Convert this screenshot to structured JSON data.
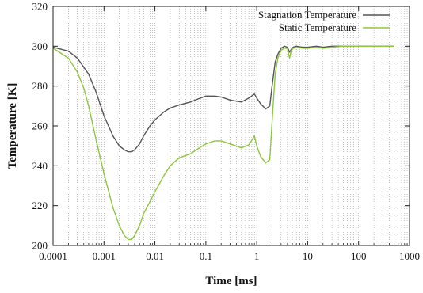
{
  "chart_data": {
    "type": "line",
    "title": "",
    "xlabel": "Time [ms]",
    "ylabel": "Temperature [K]",
    "xscale": "log",
    "xlim": [
      0.0001,
      1000
    ],
    "ylim": [
      200,
      320
    ],
    "grid": "vertical-dotted",
    "legend_position": "top-right",
    "x_ticks": [
      {
        "value": 0.0001,
        "label": "0.0001"
      },
      {
        "value": 0.001,
        "label": "0.001"
      },
      {
        "value": 0.01,
        "label": "0.01"
      },
      {
        "value": 0.1,
        "label": "0.1"
      },
      {
        "value": 1,
        "label": "1"
      },
      {
        "value": 10,
        "label": "10"
      },
      {
        "value": 100,
        "label": "100"
      },
      {
        "value": 1000,
        "label": "1000"
      }
    ],
    "y_ticks": [
      {
        "value": 200,
        "label": "200"
      },
      {
        "value": 220,
        "label": "220"
      },
      {
        "value": 240,
        "label": "240"
      },
      {
        "value": 260,
        "label": "260"
      },
      {
        "value": 280,
        "label": "280"
      },
      {
        "value": 300,
        "label": "300"
      },
      {
        "value": 320,
        "label": "320"
      }
    ],
    "series": [
      {
        "name": "Stagnation Temperature",
        "color": "#555555",
        "x": [
          0.0001,
          0.0002,
          0.0003,
          0.0005,
          0.0007,
          0.001,
          0.0015,
          0.002,
          0.0025,
          0.003,
          0.0035,
          0.004,
          0.005,
          0.006,
          0.008,
          0.01,
          0.015,
          0.02,
          0.03,
          0.05,
          0.07,
          0.1,
          0.15,
          0.2,
          0.3,
          0.5,
          0.7,
          0.9,
          1.0,
          1.2,
          1.5,
          1.8,
          2.0,
          2.3,
          2.6,
          3.0,
          3.5,
          4.0,
          4.4,
          4.8,
          5.2,
          6,
          8,
          10,
          15,
          20,
          30,
          50,
          100,
          200,
          500
        ],
        "y": [
          299.5,
          297.5,
          294,
          286,
          277,
          265,
          255,
          250,
          248,
          247,
          247,
          248,
          251,
          255,
          260,
          263,
          267,
          269,
          270.5,
          272,
          273.5,
          275,
          275,
          274.5,
          273,
          272,
          274,
          276,
          274,
          271,
          268.5,
          270,
          280,
          292,
          296,
          299,
          300,
          299.5,
          297,
          298.5,
          299.5,
          300,
          299.5,
          299.5,
          300,
          299.5,
          300,
          300,
          300,
          300,
          300
        ]
      },
      {
        "name": "Static Temperature",
        "color": "#8dc63f",
        "x": [
          0.0001,
          0.0002,
          0.0003,
          0.0004,
          0.0005,
          0.0007,
          0.001,
          0.0015,
          0.002,
          0.0025,
          0.003,
          0.0035,
          0.004,
          0.005,
          0.006,
          0.008,
          0.01,
          0.015,
          0.02,
          0.03,
          0.05,
          0.07,
          0.1,
          0.15,
          0.2,
          0.3,
          0.5,
          0.7,
          0.9,
          1.0,
          1.2,
          1.5,
          1.8,
          2.0,
          2.3,
          2.6,
          3.0,
          3.5,
          4.0,
          4.4,
          4.8,
          5.2,
          6,
          8,
          10,
          15,
          20,
          30,
          50,
          100,
          200,
          500
        ],
        "y": [
          299,
          294,
          287,
          279,
          270,
          253,
          236,
          219,
          210,
          205,
          203,
          203,
          205,
          210,
          216,
          222,
          227,
          235,
          240,
          244,
          246,
          248.5,
          251,
          252.5,
          252.5,
          251,
          249,
          250.5,
          255,
          250,
          244.5,
          241.5,
          243,
          262,
          286,
          294,
          298,
          299,
          299,
          294,
          298,
          299,
          299.5,
          299,
          299,
          299.5,
          299,
          299.5,
          300,
          300,
          300,
          300
        ]
      }
    ]
  }
}
